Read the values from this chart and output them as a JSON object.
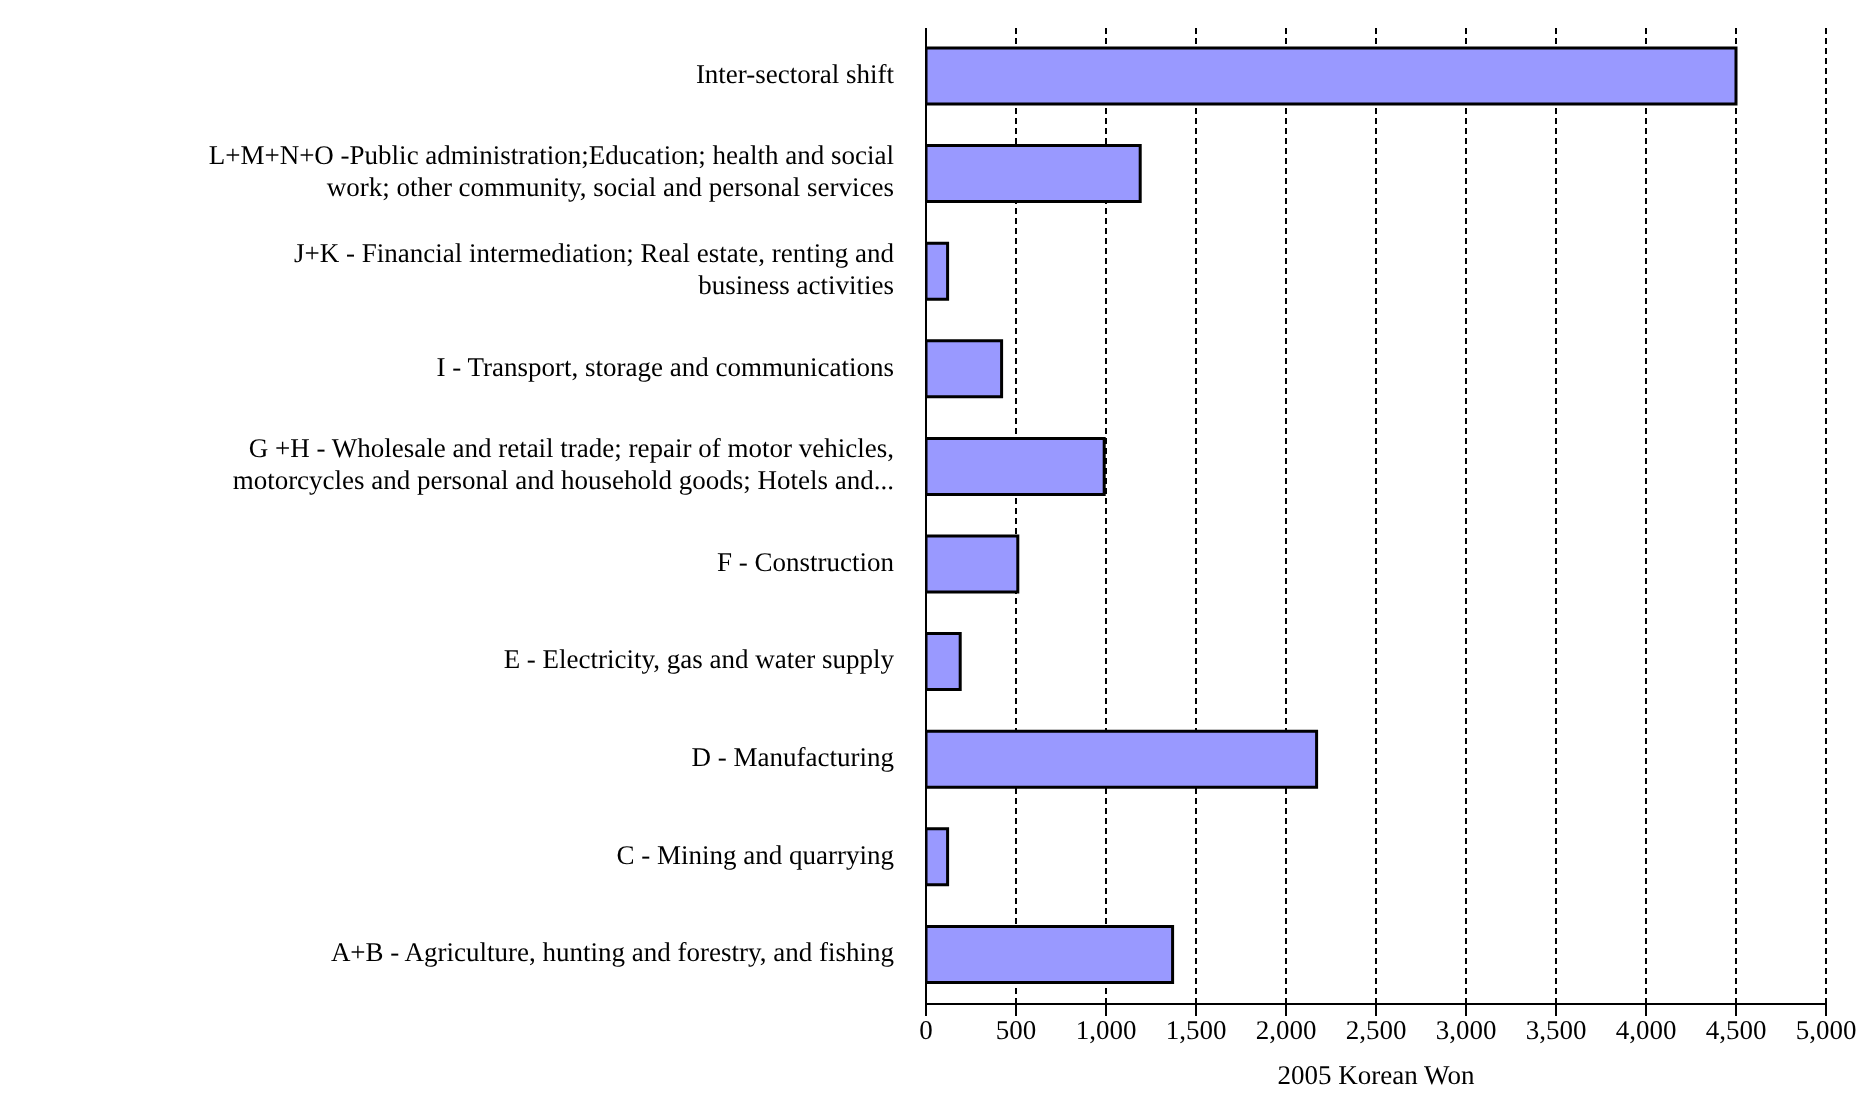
{
  "chart_data": {
    "type": "bar",
    "orientation": "horizontal",
    "xlabel": "2005 Korean Won",
    "categories": [
      "Inter-sectoral shift",
      "L+M+N+O -Public administration;Education; health and social work; other community, social and personal services",
      "J+K - Financial intermediation; Real estate, renting and business activities",
      "I - Transport, storage and communications",
      "G +H - Wholesale and retail trade; repair of motor vehicles, motorcycles and personal and household goods; Hotels and...",
      "F - Construction",
      "E - Electricity, gas and water supply",
      "D - Manufacturing",
      "C - Mining and quarrying",
      "A+B - Agriculture, hunting and forestry, and fishing"
    ],
    "values": [
      4500,
      1190,
      120,
      420,
      990,
      510,
      190,
      2170,
      120,
      1370
    ],
    "color": "#9999ff",
    "xlim": [
      0,
      5000
    ],
    "xticks": [
      {
        "value": 0,
        "label": "0"
      },
      {
        "value": 500,
        "label": "500"
      },
      {
        "value": 1000,
        "label": "1,000"
      },
      {
        "value": 1500,
        "label": "1,500"
      },
      {
        "value": 2000,
        "label": "2,000"
      },
      {
        "value": 2500,
        "label": "2,500"
      },
      {
        "value": 3000,
        "label": "3,000"
      },
      {
        "value": 3500,
        "label": "3,500"
      },
      {
        "value": 4000,
        "label": "4,000"
      },
      {
        "value": 4500,
        "label": "4,500"
      },
      {
        "value": 5000,
        "label": "5,000"
      }
    ],
    "grid": "x",
    "legend": false
  }
}
